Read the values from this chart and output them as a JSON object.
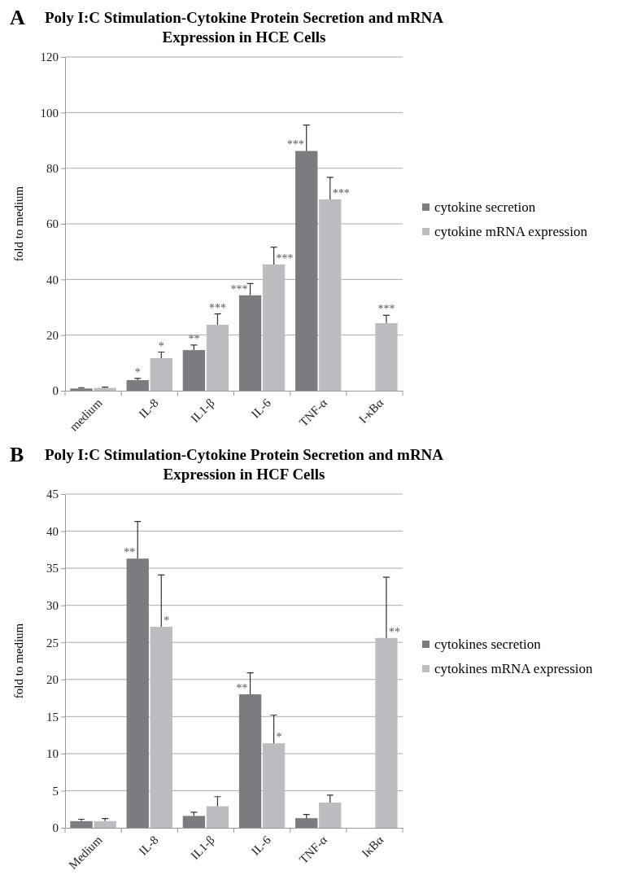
{
  "chart_data": [
    {
      "type": "bar",
      "title": "Poly I:C Stimulation-Cytokine Protein Secretion and mRNA Expression in HCE Cells",
      "ylabel": "fold to medium",
      "categories": [
        "medium",
        "IL-8",
        "IL1-β",
        "IL-6",
        "TNF-α",
        "I-κBα"
      ],
      "series": [
        {
          "name": "cytokine secretion",
          "color": "#7b7c80",
          "values": [
            0.8,
            3.8,
            14.6,
            34.3,
            86.2,
            null
          ],
          "errors": [
            [
              0.8,
              1.1
            ],
            [
              3.8,
              4.4
            ],
            [
              14.6,
              16.4
            ],
            [
              34.3,
              38.5
            ],
            [
              86.2,
              95.5
            ],
            null
          ],
          "value_labels": [
            null,
            "*",
            "**",
            "***",
            "***",
            null
          ]
        },
        {
          "name": "cytokine mRNA expression",
          "color": "#bcbdc1",
          "values": [
            1.0,
            11.7,
            23.7,
            45.4,
            68.8,
            24.3
          ],
          "errors": [
            [
              1.0,
              1.3
            ],
            [
              11.7,
              13.9
            ],
            [
              23.7,
              27.6
            ],
            [
              45.4,
              51.6
            ],
            [
              68.8,
              76.7
            ],
            [
              24.3,
              27.1
            ]
          ],
          "value_labels": [
            null,
            "*",
            "***",
            "***",
            "***",
            "***"
          ]
        }
      ],
      "ylim": [
        0,
        120
      ],
      "yticks": [
        0,
        20,
        40,
        60,
        80,
        100,
        120
      ],
      "grid": "y",
      "legend": "right",
      "annotations": [
        "A"
      ]
    },
    {
      "type": "bar",
      "title": "Poly I:C Stimulation-Cytokine Protein Secretion and mRNA Expression in HCF Cells",
      "ylabel": "fold to medium",
      "categories": [
        "Medium",
        "IL-8",
        "IL1-β",
        "IL-6",
        "TNF-α",
        "IκBα"
      ],
      "series": [
        {
          "name": "cytokines secretion",
          "color": "#7b7c80",
          "values": [
            0.9,
            36.3,
            1.6,
            18.0,
            1.3,
            null
          ],
          "errors": [
            [
              0.9,
              1.15
            ],
            [
              36.3,
              41.3
            ],
            [
              1.6,
              2.1
            ],
            [
              18.0,
              20.9
            ],
            [
              1.3,
              1.8
            ],
            null
          ],
          "value_labels": [
            null,
            "**",
            null,
            "**",
            null,
            null
          ]
        },
        {
          "name": "cytokines mRNA expression",
          "color": "#bcbdc1",
          "values": [
            0.9,
            27.1,
            2.9,
            11.4,
            3.4,
            25.6
          ],
          "errors": [
            [
              0.9,
              1.25
            ],
            [
              27.1,
              34.1
            ],
            [
              2.9,
              4.2
            ],
            [
              11.4,
              15.2
            ],
            [
              3.4,
              4.4
            ],
            [
              25.6,
              33.8
            ]
          ],
          "value_labels": [
            null,
            "*",
            null,
            "*",
            null,
            "**"
          ]
        }
      ],
      "ylim": [
        0,
        45
      ],
      "yticks": [
        0,
        5,
        10,
        15,
        20,
        25,
        30,
        35,
        40,
        45
      ],
      "grid": "y",
      "legend": "right",
      "annotations": [
        "B"
      ]
    }
  ]
}
